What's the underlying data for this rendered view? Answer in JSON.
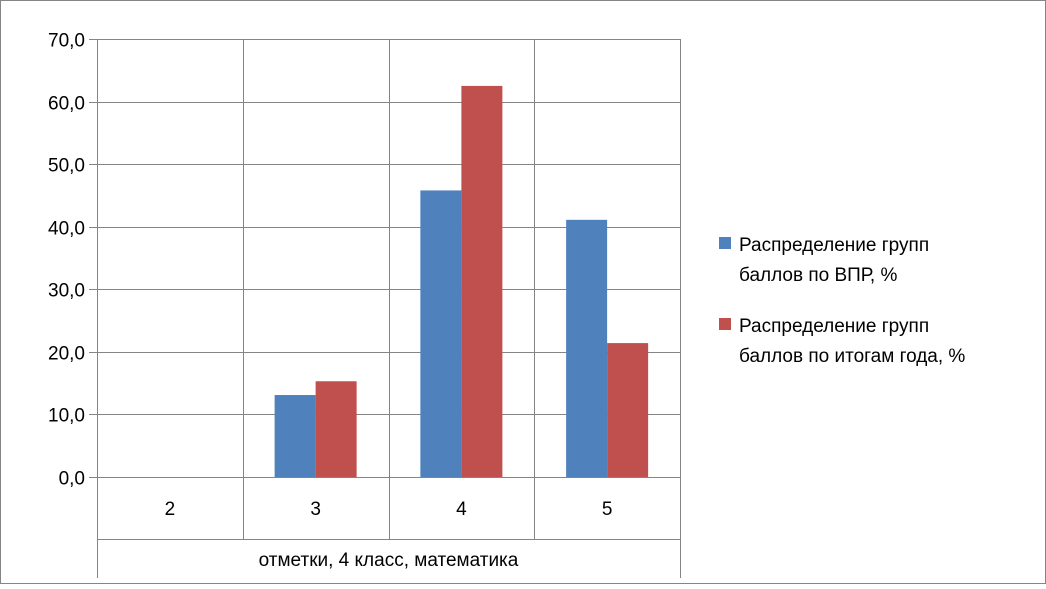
{
  "chart_data": {
    "type": "bar",
    "categories": [
      "2",
      "3",
      "4",
      "5"
    ],
    "series": [
      {
        "name": "Распределение групп баллов по ВПР, %",
        "values": [
          0,
          13.1,
          45.8,
          41.1
        ],
        "color": "#4f81bd"
      },
      {
        "name": "Распределение групп баллов по итогам года, %",
        "values": [
          0,
          15.3,
          62.5,
          21.4
        ],
        "color": "#c0504d"
      }
    ],
    "y_ticks": [
      "0,0",
      "10,0",
      "20,0",
      "30,0",
      "40,0",
      "50,0",
      "60,0",
      "70,0"
    ],
    "ylim": [
      0,
      70
    ],
    "xlabel": "отметки, 4 класс, математика",
    "ylabel": "",
    "title": "",
    "grid": true,
    "legend_position": "right",
    "legend": {
      "entries": [
        {
          "lines": [
            "Распределение групп",
            "баллов по ВПР, %"
          ],
          "color": "#4f81bd"
        },
        {
          "lines": [
            "Распределение групп",
            "баллов по итогам года, %"
          ],
          "color": "#c0504d"
        }
      ]
    }
  }
}
